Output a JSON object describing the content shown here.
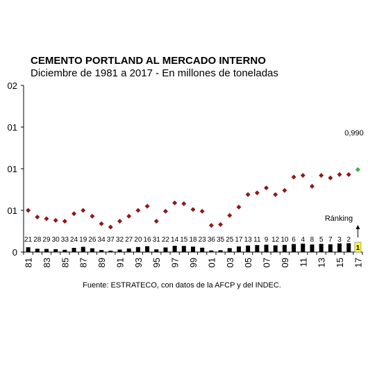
{
  "title": "CEMENTO PORTLAND AL MERCADO INTERNO",
  "subtitle": "Diciembre de 1981 a 2017 - En millones de toneladas",
  "source": "Fuente: ESTRATECO, con datos de la AFCP y del INDEC.",
  "ranking_label": "Ránking",
  "highlight_label": "0,990",
  "colors": {
    "points": "#8b1a1a",
    "highlight_point": "#3cb043",
    "bars": "#000000",
    "rank_box": "#ffff33"
  },
  "chart_data": {
    "type": "scatter",
    "title": "CEMENTO PORTLAND AL MERCADO INTERNO",
    "subtitle": "Diciembre de 1981 a 2017 - En millones de toneladas",
    "y_tick_labels": [
      "0",
      "01",
      "01",
      "01",
      "02"
    ],
    "x_tick_labels": [
      "81",
      "83",
      "85",
      "87",
      "89",
      "91",
      "93",
      "95",
      "97",
      "99",
      "01",
      "03",
      "05",
      "07",
      "09",
      "11",
      "13",
      "15",
      "17"
    ],
    "years": [
      1981,
      1982,
      1983,
      1984,
      1985,
      1986,
      1987,
      1988,
      1989,
      1990,
      1991,
      1992,
      1993,
      1994,
      1995,
      1996,
      1997,
      1998,
      1999,
      2000,
      2001,
      2002,
      2003,
      2004,
      2005,
      2006,
      2007,
      2008,
      2009,
      2010,
      2011,
      2012,
      2013,
      2014,
      2015,
      2016,
      2017
    ],
    "values": [
      0.5,
      0.42,
      0.4,
      0.38,
      0.37,
      0.46,
      0.5,
      0.43,
      0.34,
      0.3,
      0.37,
      0.43,
      0.5,
      0.55,
      0.37,
      0.49,
      0.59,
      0.58,
      0.51,
      0.49,
      0.32,
      0.33,
      0.44,
      0.54,
      0.69,
      0.71,
      0.77,
      0.69,
      0.74,
      0.9,
      0.92,
      0.79,
      0.92,
      0.89,
      0.93,
      0.93,
      0.99
    ],
    "ranking": [
      21,
      28,
      29,
      30,
      33,
      24,
      19,
      26,
      34,
      37,
      32,
      27,
      20,
      16,
      31,
      22,
      14,
      15,
      18,
      23,
      36,
      35,
      25,
      17,
      13,
      11,
      9,
      12,
      10,
      6,
      4,
      8,
      5,
      7,
      3,
      2,
      1
    ],
    "ylim": [
      0,
      2
    ],
    "highlight_index": 36,
    "grid": false,
    "legend": "none"
  }
}
